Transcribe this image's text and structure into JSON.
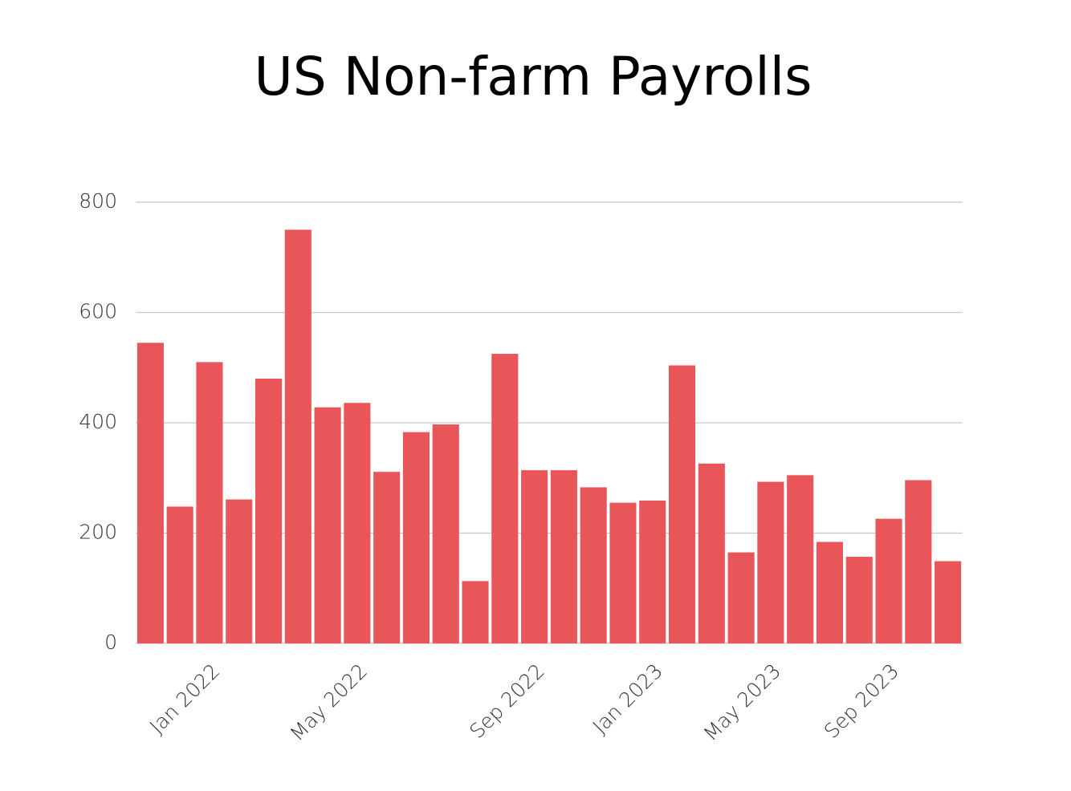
{
  "chart_data": {
    "type": "bar",
    "title": "US Non-farm Payrolls",
    "categories": [
      null,
      null,
      "Jan 2022",
      null,
      null,
      null,
      null,
      "May 2022",
      null,
      null,
      null,
      null,
      null,
      "Sep 2022",
      null,
      null,
      null,
      "Jan 2023",
      null,
      null,
      null,
      "May 2023",
      null,
      null,
      null,
      "Sep 2023",
      null,
      null
    ],
    "values": [
      545,
      248,
      510,
      261,
      480,
      750,
      428,
      436,
      311,
      383,
      397,
      113,
      525,
      314,
      314,
      283,
      255,
      259,
      504,
      326,
      165,
      293,
      305,
      184,
      157,
      226,
      296,
      149
    ],
    "color": "#e8565a",
    "ylim": [
      0,
      800
    ],
    "yticks": [
      0,
      200,
      400,
      600,
      800
    ],
    "grid": true
  }
}
